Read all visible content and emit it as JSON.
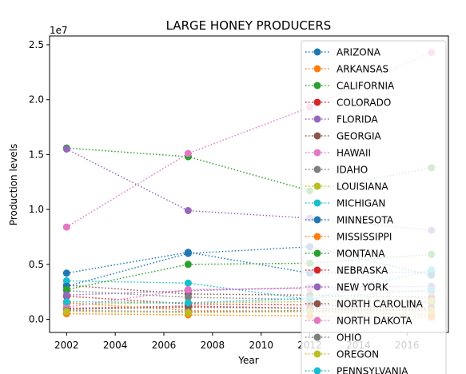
{
  "chart_data": {
    "type": "line",
    "title": "LARGE HONEY PRODUCERS",
    "xlabel": "Year",
    "ylabel": "Production levels",
    "y_offset_text": "1e7",
    "y_scale": 10000000,
    "xlim": [
      2001.3,
      2017.7
    ],
    "ylim": [
      -1200000,
      25800000
    ],
    "x_ticks": [
      2002,
      2004,
      2006,
      2008,
      2010,
      2012,
      2014,
      2016
    ],
    "x_tick_labels": [
      "2002",
      "2004",
      "2006",
      "2008",
      "2010",
      "2012",
      "2014",
      "2016"
    ],
    "y_ticks": [
      0,
      5000000,
      10000000,
      15000000,
      20000000,
      25000000
    ],
    "y_tick_labels": [
      "0.0",
      "0.5",
      "1.0",
      "1.5",
      "2.0",
      "2.5"
    ],
    "grid": false,
    "legend_position": "top-right",
    "x": [
      2002,
      2007,
      2012,
      2017
    ],
    "series": [
      {
        "name": "ARIZONA",
        "color": "#1f77b4",
        "values": [
          4200000,
          6100000,
          4200000,
          4300000
        ]
      },
      {
        "name": "ARKANSAS",
        "color": "#ff7f0e",
        "values": [
          500000,
          400000,
          300000,
          200000
        ]
      },
      {
        "name": "CALIFORNIA",
        "color": "#2ca02c",
        "values": [
          15600000,
          14800000,
          11700000,
          13800000
        ]
      },
      {
        "name": "COLORADO",
        "color": "#d62728",
        "values": [
          1000000,
          1200000,
          1000000,
          800000
        ]
      },
      {
        "name": "FLORIDA",
        "color": "#9467bd",
        "values": [
          15500000,
          9900000,
          9200000,
          8100000
        ]
      },
      {
        "name": "GEORGIA",
        "color": "#8c564b",
        "values": [
          3100000,
          2300000,
          2200000,
          2000000
        ]
      },
      {
        "name": "HAWAII",
        "color": "#e377c2",
        "values": [
          8400000,
          15100000,
          19300000,
          24300000
        ]
      },
      {
        "name": "IDAHO",
        "color": "#7f7f7f",
        "values": [
          2600000,
          2000000,
          1800000,
          1500000
        ]
      },
      {
        "name": "LOUISIANA",
        "color": "#bcbd22",
        "values": [
          1400000,
          1500000,
          1600000,
          1700000
        ]
      },
      {
        "name": "MICHIGAN",
        "color": "#17becf",
        "values": [
          3500000,
          3300000,
          1800000,
          4500000
        ]
      },
      {
        "name": "MINNESOTA",
        "color": "#1f77b4",
        "values": [
          3000000,
          6000000,
          6600000,
          4000000
        ]
      },
      {
        "name": "MISSISSIPPI",
        "color": "#ff7f0e",
        "values": [
          1500000,
          800000,
          700000,
          400000
        ]
      },
      {
        "name": "MONTANA",
        "color": "#2ca02c",
        "values": [
          2700000,
          5000000,
          5100000,
          5900000
        ]
      },
      {
        "name": "NEBRASKA",
        "color": "#d62728",
        "values": [
          2100000,
          1400000,
          1300000,
          1000000
        ]
      },
      {
        "name": "NEW YORK",
        "color": "#9467bd",
        "values": [
          2200000,
          2600000,
          2900000,
          3000000
        ]
      },
      {
        "name": "NORTH CAROLINA",
        "color": "#8c564b",
        "values": [
          900000,
          1100000,
          1000000,
          800000
        ]
      },
      {
        "name": "NORTH DAKOTA",
        "color": "#e377c2",
        "values": [
          1100000,
          2700000,
          2800000,
          2500000
        ]
      },
      {
        "name": "OHIO",
        "color": "#7f7f7f",
        "values": [
          800000,
          700000,
          800000,
          900000
        ]
      },
      {
        "name": "OREGON",
        "color": "#bcbd22",
        "values": [
          700000,
          600000,
          700000,
          800000
        ]
      },
      {
        "name": "PENNSYLVANIA",
        "color": "#17becf",
        "values": [
          1600000,
          1500000,
          1900000,
          2700000
        ]
      }
    ]
  }
}
